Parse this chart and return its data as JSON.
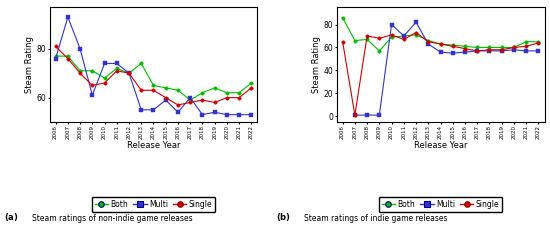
{
  "years": [
    2006,
    2007,
    2008,
    2009,
    2010,
    2011,
    2012,
    2013,
    2014,
    2015,
    2016,
    2017,
    2018,
    2019,
    2020,
    2021,
    2022
  ],
  "non_indie": {
    "both": [
      77,
      77,
      71,
      71,
      68,
      72,
      70,
      74,
      65,
      64,
      63,
      59,
      62,
      64,
      62,
      62,
      66
    ],
    "multi": [
      76,
      93,
      80,
      61,
      74,
      74,
      70,
      55,
      55,
      59,
      54,
      60,
      53,
      54,
      53,
      53,
      53
    ],
    "single": [
      81,
      76,
      70,
      65,
      66,
      71,
      70,
      63,
      63,
      60,
      57,
      58,
      59,
      58,
      60,
      60,
      64
    ]
  },
  "indie": {
    "both": [
      86,
      66,
      67,
      57,
      69,
      70,
      71,
      66,
      63,
      62,
      61,
      60,
      60,
      60,
      60,
      65,
      65
    ],
    "multi": [
      null,
      1,
      1,
      1,
      80,
      70,
      82,
      63,
      56,
      55,
      56,
      57,
      57,
      57,
      58,
      57,
      57
    ],
    "single": [
      65,
      1,
      70,
      68,
      71,
      67,
      73,
      65,
      63,
      61,
      59,
      57,
      58,
      58,
      60,
      61,
      64
    ]
  },
  "colors": {
    "both": "#00bb00",
    "multi": "#3333cc",
    "single": "#cc0000"
  },
  "ylabel": "Steam Rating",
  "xlabel": "Release Year",
  "ylim_a": [
    50,
    97
  ],
  "ylim_b": [
    -5,
    95
  ],
  "yticks_a": [
    60,
    80
  ],
  "yticks_b": [
    0,
    20,
    40,
    60,
    80
  ],
  "caption_a": "Steam ratings of non-indie game releases",
  "caption_b": "Steam ratings of indie game releases"
}
